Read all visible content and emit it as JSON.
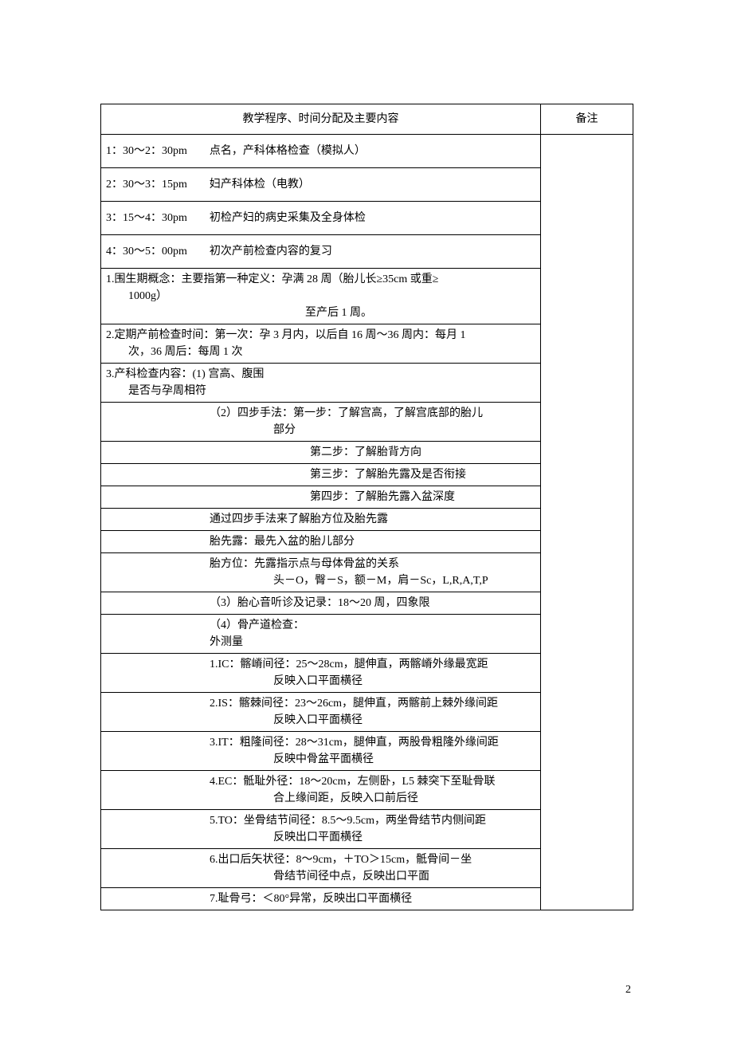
{
  "header": {
    "main": "教学程序、时间分配及主要内容",
    "note": "备注"
  },
  "schedule": [
    {
      "time": "1：30～2：30pm",
      "desc": "点名，产科体格检查（模拟人）"
    },
    {
      "time": "2：30～3：15pm",
      "desc": "妇产科体检（电教）"
    },
    {
      "time": "3：15～4：30pm",
      "desc": "初检产妇的病史采集及全身体检"
    },
    {
      "time": "4：30～5：00pm",
      "desc": "初次产前检查内容的复习"
    }
  ],
  "rows": [
    {
      "l1": "1.围生期概念：主要指第一种定义：孕满 28 周（胎儿长≥35cm 或重≥",
      "l2": "1000g）",
      "l3": "至产后 1 周。"
    },
    {
      "l1": "2.定期产前检查时间：第一次：孕 3 月内，以后自 16 周～36 周内：每月 1",
      "l2": "次，36 周后：每周 1 次"
    },
    {
      "l1": "3.产科检查内容：(1)  宫高、腹围",
      "l2": "是否与孕周相符"
    },
    {
      "l1": "（2）四步手法：第一步：了解宫高，了解宫底部的胎儿",
      "l2": "部分",
      "indent": 2
    },
    {
      "l1": "第二步：了解胎背方向",
      "indent": 3,
      "center": true
    },
    {
      "l1": "第三步：了解胎先露及是否衔接",
      "indent": 3,
      "center": true
    },
    {
      "l1": "第四步：了解胎先露入盆深度",
      "indent": 3,
      "center": true
    },
    {
      "l1": "通过四步手法来了解胎方位及胎先露",
      "indent": 2
    },
    {
      "l1": "胎先露：最先入盆的胎儿部分",
      "indent": 2
    },
    {
      "l1": "胎方位：先露指示点与母体骨盆的关系",
      "l2": "头－O，臀－S，额－M，肩－Sc，L,R,A,T,P",
      "indent": 2
    },
    {
      "l1": "（3）胎心音听诊及记录：18～20 周，四象限",
      "indent": 2
    },
    {
      "l1": "（4）骨产道检查：",
      "l2": "外测量",
      "indent": 2,
      "l2noindent": true
    },
    {
      "l1": "1.IC：髂嵴间径：25～28cm，腿伸直，两髂嵴外缘最宽距",
      "l2": "反映入口平面横径",
      "indent": 2
    },
    {
      "l1": "2.IS：髂棘间径：23～26cm，腿伸直，两髂前上棘外缘间距",
      "l2": "反映入口平面横径",
      "indent": 2
    },
    {
      "l1": "3.IT：粗隆间径：28～31cm，腿伸直，两股骨粗隆外缘间距",
      "l2": "反映中骨盆平面横径",
      "indent": 2
    },
    {
      "l1": "4.EC：骶耻外径：18～20cm，左侧卧，L5 棘突下至耻骨联",
      "l2": "合上缘间距，反映入口前后径",
      "indent": 2
    },
    {
      "l1": "5.TO：坐骨结节间径：8.5～9.5cm，两坐骨结节内侧间距",
      "l2": "反映出口平面横径",
      "indent": 2
    },
    {
      "l1": "6.出口后矢状径：8～9cm，＋TO＞15cm，骶骨间－坐",
      "l2": "骨结节间径中点，反映出口平面",
      "indent": 2
    },
    {
      "l1": "7.耻骨弓：＜80°异常，反映出口平面横径",
      "indent": 2
    }
  ],
  "pagenum": "2",
  "colors": {
    "border": "#000000",
    "bg": "#ffffff",
    "text": "#000000"
  }
}
